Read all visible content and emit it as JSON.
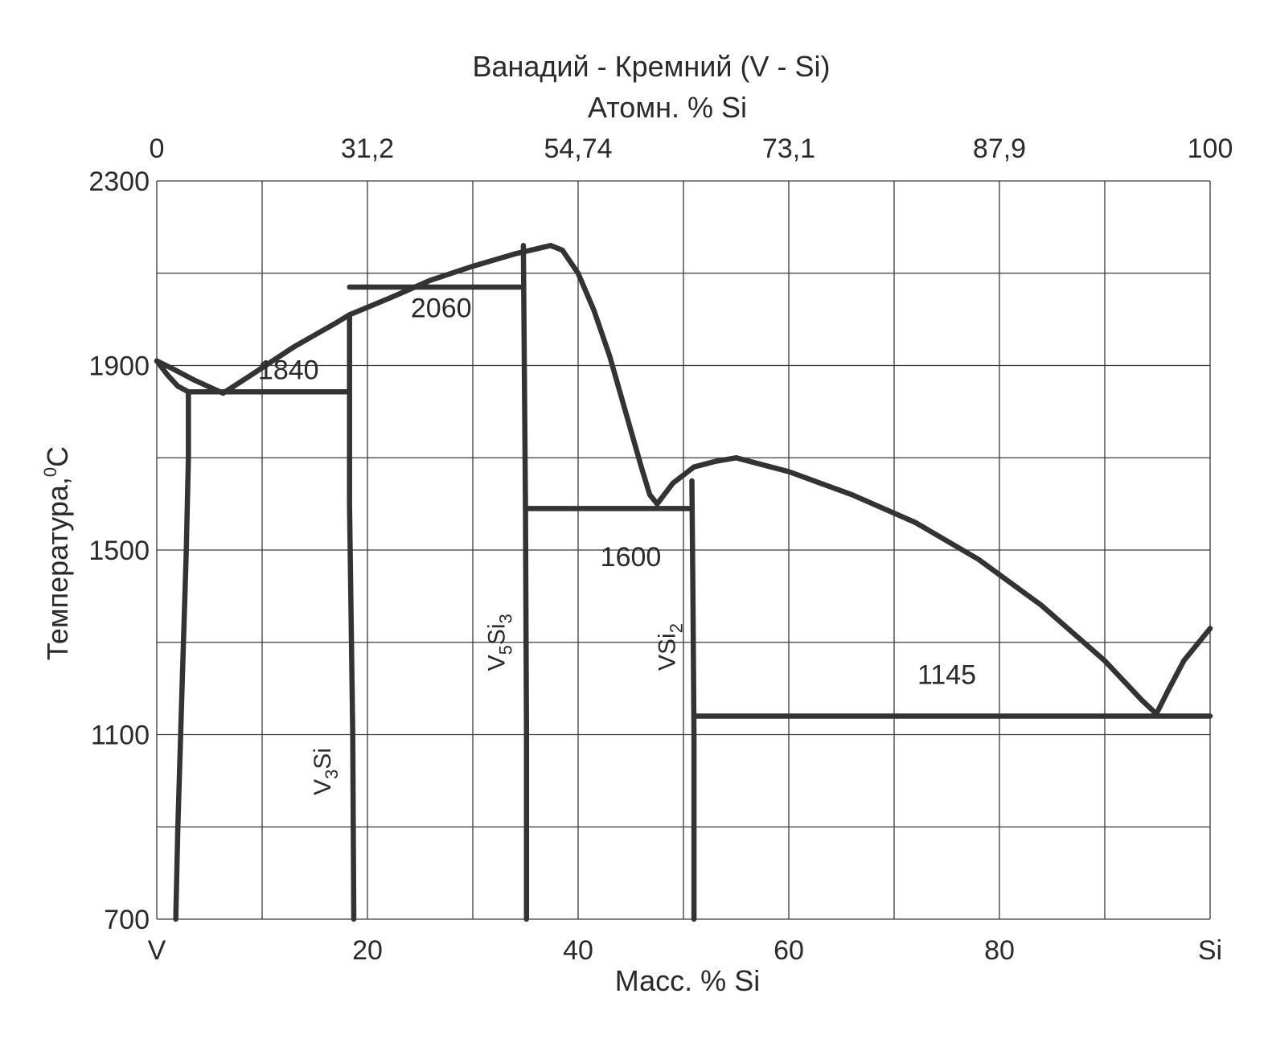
{
  "chart_data": {
    "type": "line",
    "title": "Ванадий - Кремний (V - Si)",
    "top_axis": {
      "label": "Атомн. % Si",
      "ticks": [
        {
          "label": "0",
          "mass_pct": 0
        },
        {
          "label": "31,2",
          "mass_pct": 20
        },
        {
          "label": "54,74",
          "mass_pct": 40
        },
        {
          "label": "73,1",
          "mass_pct": 60
        },
        {
          "label": "87,9",
          "mass_pct": 80
        },
        {
          "label": "100",
          "mass_pct": 100
        }
      ]
    },
    "x_axis": {
      "label": "Масс. % Si",
      "range": [
        0,
        100
      ],
      "ticks": [
        {
          "label": "V",
          "value": 0
        },
        {
          "label": "20",
          "value": 20
        },
        {
          "label": "40",
          "value": 40
        },
        {
          "label": "60",
          "value": 60
        },
        {
          "label": "80",
          "value": 80
        },
        {
          "label": "Si",
          "value": 100
        }
      ],
      "grid_step": 10
    },
    "y_axis": {
      "label": "Температура,",
      "unit_sup": "0",
      "unit": "C",
      "range": [
        700,
        2300
      ],
      "ticks": [
        2300,
        1900,
        1500,
        1100,
        700
      ],
      "grid_step": 200
    },
    "grid": true,
    "curves": [
      {
        "id": "liquidus-v-side",
        "points": [
          [
            0,
            1910
          ],
          [
            1.5,
            1893
          ],
          [
            3.5,
            1869
          ],
          [
            6.3,
            1840
          ]
        ]
      },
      {
        "id": "liquidus-v3si",
        "points": [
          [
            6.3,
            1840
          ],
          [
            9,
            1880
          ],
          [
            13,
            1940
          ],
          [
            17,
            1992
          ],
          [
            18.3,
            2010
          ],
          [
            22,
            2045
          ],
          [
            26,
            2085
          ],
          [
            30,
            2115
          ],
          [
            34,
            2142
          ],
          [
            37.4,
            2160
          ]
        ]
      },
      {
        "id": "liquidus-v5si3-right",
        "points": [
          [
            37.4,
            2160
          ],
          [
            38.5,
            2150
          ],
          [
            40,
            2100
          ],
          [
            41.5,
            2020
          ],
          [
            43,
            1920
          ],
          [
            45,
            1760
          ],
          [
            46,
            1680
          ],
          [
            46.8,
            1620
          ],
          [
            47.5,
            1600
          ]
        ]
      },
      {
        "id": "liquidus-vsi2-left",
        "points": [
          [
            47.5,
            1600
          ],
          [
            49,
            1645
          ],
          [
            51,
            1680
          ],
          [
            53,
            1692
          ],
          [
            55,
            1700
          ]
        ]
      },
      {
        "id": "liquidus-vsi2-right",
        "points": [
          [
            55,
            1700
          ],
          [
            60,
            1670
          ],
          [
            66,
            1620
          ],
          [
            72,
            1560
          ],
          [
            78,
            1480
          ],
          [
            84,
            1380
          ],
          [
            90,
            1260
          ],
          [
            93.5,
            1175
          ],
          [
            94.9,
            1145
          ]
        ]
      },
      {
        "id": "liquidus-si-side",
        "points": [
          [
            94.9,
            1145
          ],
          [
            96,
            1195
          ],
          [
            97.5,
            1260
          ],
          [
            100,
            1330
          ]
        ]
      },
      {
        "id": "solidus-v",
        "points": [
          [
            0,
            1910
          ],
          [
            1,
            1880
          ],
          [
            2,
            1855
          ],
          [
            3,
            1843
          ]
        ]
      },
      {
        "id": "solvus-v",
        "points": [
          [
            3,
            1843
          ],
          [
            3,
            1700
          ],
          [
            2.8,
            1500
          ],
          [
            2.4,
            1200
          ],
          [
            2,
            900
          ],
          [
            1.8,
            700
          ]
        ]
      },
      {
        "id": "phase-v3si",
        "points": [
          [
            18.3,
            2010
          ],
          [
            18.3,
            1600
          ],
          [
            18.6,
            1100
          ],
          [
            18.7,
            700
          ]
        ]
      },
      {
        "id": "phase-v5si3",
        "points": [
          [
            34.8,
            2160
          ],
          [
            35,
            1600
          ],
          [
            35.1,
            1100
          ],
          [
            35.1,
            700
          ]
        ]
      },
      {
        "id": "phase-vsi2",
        "points": [
          [
            50.8,
            1650
          ],
          [
            50.9,
            1400
          ],
          [
            51,
            1100
          ],
          [
            51,
            700
          ]
        ]
      },
      {
        "id": "eutectic-1840",
        "points": [
          [
            3,
            1843
          ],
          [
            18.3,
            1843
          ]
        ]
      },
      {
        "id": "peritectic-2060",
        "points": [
          [
            18.3,
            2070
          ],
          [
            34.8,
            2070
          ]
        ]
      },
      {
        "id": "eutectic-1600",
        "points": [
          [
            35,
            1590
          ],
          [
            50.8,
            1590
          ]
        ]
      },
      {
        "id": "eutectic-1145",
        "points": [
          [
            51,
            1140
          ],
          [
            100,
            1140
          ]
        ]
      }
    ],
    "annotations": [
      {
        "text": "1840",
        "x": 12.5,
        "y": 1870
      },
      {
        "text": "2060",
        "x": 27,
        "y": 2005
      },
      {
        "text": "1600",
        "x": 45,
        "y": 1465
      },
      {
        "text": "1145",
        "x": 75,
        "y": 1210
      }
    ],
    "phase_labels": [
      {
        "base": "V",
        "sub1": "3",
        "mid": "Si",
        "sub2": "",
        "x": 16.5,
        "y": 1020
      },
      {
        "base": "V",
        "sub1": "5",
        "mid": "Si",
        "sub2": "3",
        "x": 33,
        "y": 1300
      },
      {
        "base": "V",
        "sub1": "",
        "mid": "Si",
        "sub2": "2",
        "x": 49.2,
        "y": 1290
      }
    ]
  }
}
